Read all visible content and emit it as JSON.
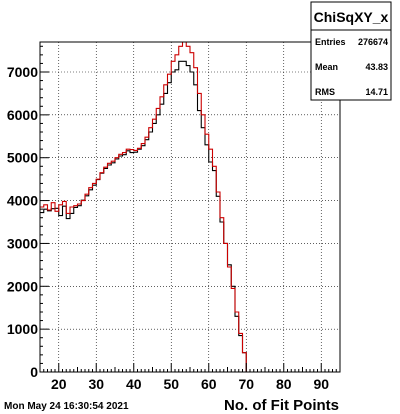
{
  "timestamp": "Mon May 24 16:30:54 2021",
  "stats_box": {
    "title": "ChiSqXY_x",
    "rows": [
      {
        "label": "Entries",
        "value": "276674"
      },
      {
        "label": "Mean",
        "value": "43.83"
      },
      {
        "label": "RMS",
        "value": "14.71"
      }
    ]
  },
  "colors": {
    "series_black": "#000000",
    "series_red": "#cc0000"
  },
  "chart_data": {
    "type": "histogram",
    "xlabel": "No. of Fit Points",
    "ylabel": "",
    "xlim": [
      15,
      95
    ],
    "ylim": [
      0,
      7700
    ],
    "x_ticks": [
      20,
      30,
      40,
      50,
      60,
      70,
      80,
      90
    ],
    "y_ticks": [
      0,
      1000,
      2000,
      3000,
      4000,
      5000,
      6000,
      7000
    ],
    "grid": true,
    "bin_edges": [
      15,
      16,
      17,
      18,
      19,
      20,
      21,
      22,
      23,
      24,
      25,
      26,
      27,
      28,
      29,
      30,
      31,
      32,
      33,
      34,
      35,
      36,
      37,
      38,
      39,
      40,
      41,
      42,
      43,
      44,
      45,
      46,
      47,
      48,
      49,
      50,
      51,
      52,
      53,
      54,
      55,
      56,
      57,
      58,
      59,
      60,
      61,
      62,
      63,
      64,
      65,
      66,
      67,
      68,
      69,
      70,
      71,
      72,
      73,
      74,
      75,
      76,
      77,
      78,
      79,
      80,
      81,
      82,
      83,
      84,
      85,
      86,
      87,
      88,
      89,
      90,
      91,
      92,
      93,
      94,
      95
    ],
    "series": [
      {
        "color_key": "series_black",
        "values": [
          3720,
          3800,
          3760,
          3810,
          3820,
          3650,
          3870,
          3580,
          3700,
          3840,
          3880,
          4010,
          4110,
          4250,
          4360,
          4490,
          4640,
          4750,
          4830,
          4880,
          4970,
          5040,
          5070,
          5160,
          5120,
          5130,
          5200,
          5280,
          5420,
          5600,
          5800,
          6000,
          6250,
          6500,
          6750,
          7000,
          7050,
          7250,
          7250,
          7150,
          7000,
          6700,
          6100,
          5700,
          5300,
          4900,
          4700,
          4100,
          3500,
          3000,
          2500,
          2000,
          1300,
          850,
          450,
          0,
          0,
          0,
          0,
          0,
          0,
          0,
          0,
          0,
          0,
          0,
          0,
          0,
          0,
          0,
          0,
          0,
          0,
          0,
          0,
          0,
          0,
          0,
          0,
          0
        ]
      },
      {
        "color_key": "series_red",
        "values": [
          3850,
          3900,
          3780,
          3950,
          3750,
          3900,
          3980,
          3700,
          3850,
          3880,
          3920,
          4000,
          4150,
          4300,
          4400,
          4500,
          4650,
          4780,
          4870,
          4920,
          5000,
          5080,
          5120,
          5200,
          5190,
          5170,
          5220,
          5330,
          5480,
          5700,
          5900,
          6150,
          6420,
          6700,
          6950,
          7250,
          7400,
          7600,
          7700,
          7600,
          7450,
          7100,
          6500,
          6000,
          5550,
          5200,
          4800,
          4200,
          3600,
          3000,
          2450,
          1950,
          1400,
          900,
          450,
          0,
          0,
          0,
          0,
          0,
          0,
          0,
          0,
          0,
          0,
          0,
          0,
          0,
          0,
          0,
          0,
          0,
          0,
          0,
          0,
          0,
          0,
          0,
          0,
          0
        ]
      }
    ]
  }
}
